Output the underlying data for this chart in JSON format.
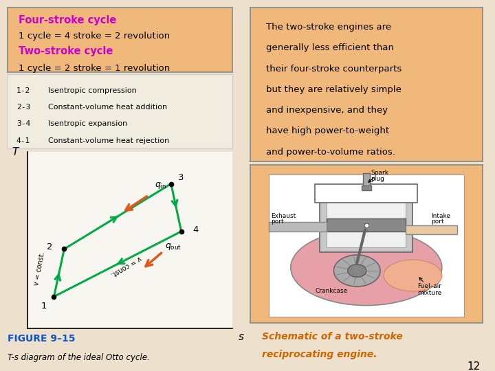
{
  "bg_color": "#ede0cc",
  "left_box_bg": "#f0b87a",
  "left_box_border": "#888888",
  "right_box_bg": "#f0b87a",
  "right_box_border": "#888888",
  "four_stroke_title": "Four-stroke cycle",
  "four_stroke_line": "1 cycle = 4 stroke = 2 revolution",
  "two_stroke_title": "Two-stroke cycle",
  "two_stroke_line": "1 cycle = 2 stroke = 1 revolution",
  "highlight_color": "#cc00cc",
  "legend_items": [
    [
      "1-2",
      "Isentropic compression"
    ],
    [
      "2-3",
      "Constant-volume heat addition"
    ],
    [
      "3-4",
      "Isentropic expansion"
    ],
    [
      "4-1",
      "Constant-volume heat rejection"
    ]
  ],
  "ts_points": {
    "1": [
      0.13,
      0.18
    ],
    "2": [
      0.18,
      0.45
    ],
    "3": [
      0.7,
      0.82
    ],
    "4": [
      0.75,
      0.55
    ]
  },
  "figure_label": "FIGURE 9–15",
  "figure_caption": "T-s diagram of the ideal Otto cycle.",
  "figure_label_color": "#1155cc",
  "right_text_lines": [
    "The two-stroke engines are",
    "generally less efficient than",
    "their four-stroke counterparts",
    "but they are relatively simple",
    "and inexpensive, and they",
    "have high power-to-weight",
    "and power-to-volume ratios."
  ],
  "schematic_caption_line1": "Schematic of a two-stroke",
  "schematic_caption_line2": "reciprocating engine.",
  "schematic_caption_color": "#cc6600",
  "page_number": "12",
  "green_line_color": "#00aa44",
  "arrow_orange": "#e05820",
  "diagram_bg": "#f8f6f0",
  "legend_bg": "#f0ede0"
}
